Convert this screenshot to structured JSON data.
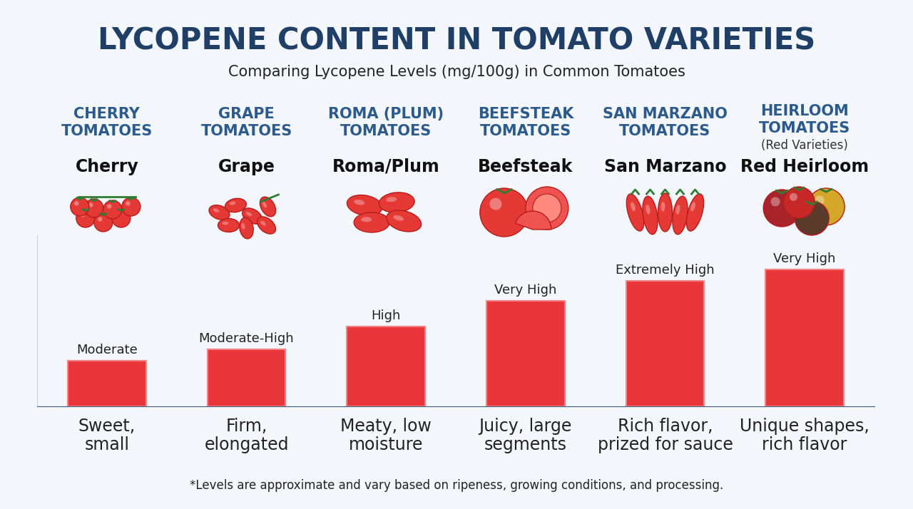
{
  "chart_data": {
    "type": "bar",
    "title": "LYCOPENE CONTENT IN TOMATO VARIETIES",
    "subtitle": "Comparing Lycopene Levels (mg/100g) in Common Tomatoes",
    "headers": [
      "CHERRY\nTOMATOES",
      "GRAPE\nTOMATOES",
      "ROMA (PLUM)\nTOMATOES",
      "BEEFSTEAK\nTOMATOES",
      "SAN MARZANO\nTOMATOES",
      "HEIRLOOM\nTOMATOES"
    ],
    "header_notes": [
      null,
      null,
      null,
      null,
      null,
      "(Red Varieties)"
    ],
    "categories": [
      "Cherry",
      "Grape",
      "Roma/Plum",
      "Beefsteak",
      "San Marzano",
      "Red Heirloom"
    ],
    "values": [
      3.2,
      4.0,
      5.6,
      7.4,
      8.8,
      9.6
    ],
    "levels": [
      "Moderate",
      "Moderate-High",
      "High",
      "Very High",
      "Extremely High",
      "Very High"
    ],
    "descriptions": [
      "Sweet,\nsmall",
      "Firm,\nelongated",
      "Meaty, low\nmoisture",
      "Juicy, large\nsegments",
      "Rich flavor,\nprized for sauce",
      "Unique shapes,\nrich flavor"
    ],
    "footnote": "*Levels are approximate and vary based on ripeness, growing conditions, and processing.",
    "color": "#e8353a",
    "ylim": [
      0,
      12
    ],
    "tick_labels": false,
    "grid": false
  }
}
